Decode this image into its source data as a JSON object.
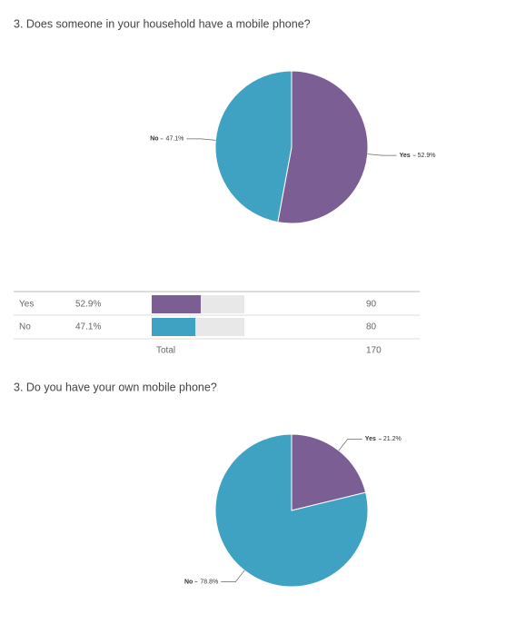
{
  "chart_data": [
    {
      "type": "pie",
      "title": "3. Does someone in your household have a mobile phone?",
      "categories": [
        "Yes",
        "No"
      ],
      "values": [
        52.9,
        47.1
      ],
      "value_labels": [
        "52.9%",
        "47.1%"
      ],
      "colors": [
        "#7b5e94",
        "#3fa2c3"
      ]
    },
    {
      "type": "pie",
      "title": "3. Do you have your own mobile phone?",
      "categories": [
        "Yes",
        "No"
      ],
      "values": [
        21.2,
        78.8
      ],
      "value_labels": [
        "21.2%",
        "78.8%"
      ],
      "colors": [
        "#7b5e94",
        "#3fa2c3"
      ]
    }
  ],
  "table": {
    "counts": [
      90,
      80
    ],
    "total_label": "Total",
    "total": 170
  }
}
